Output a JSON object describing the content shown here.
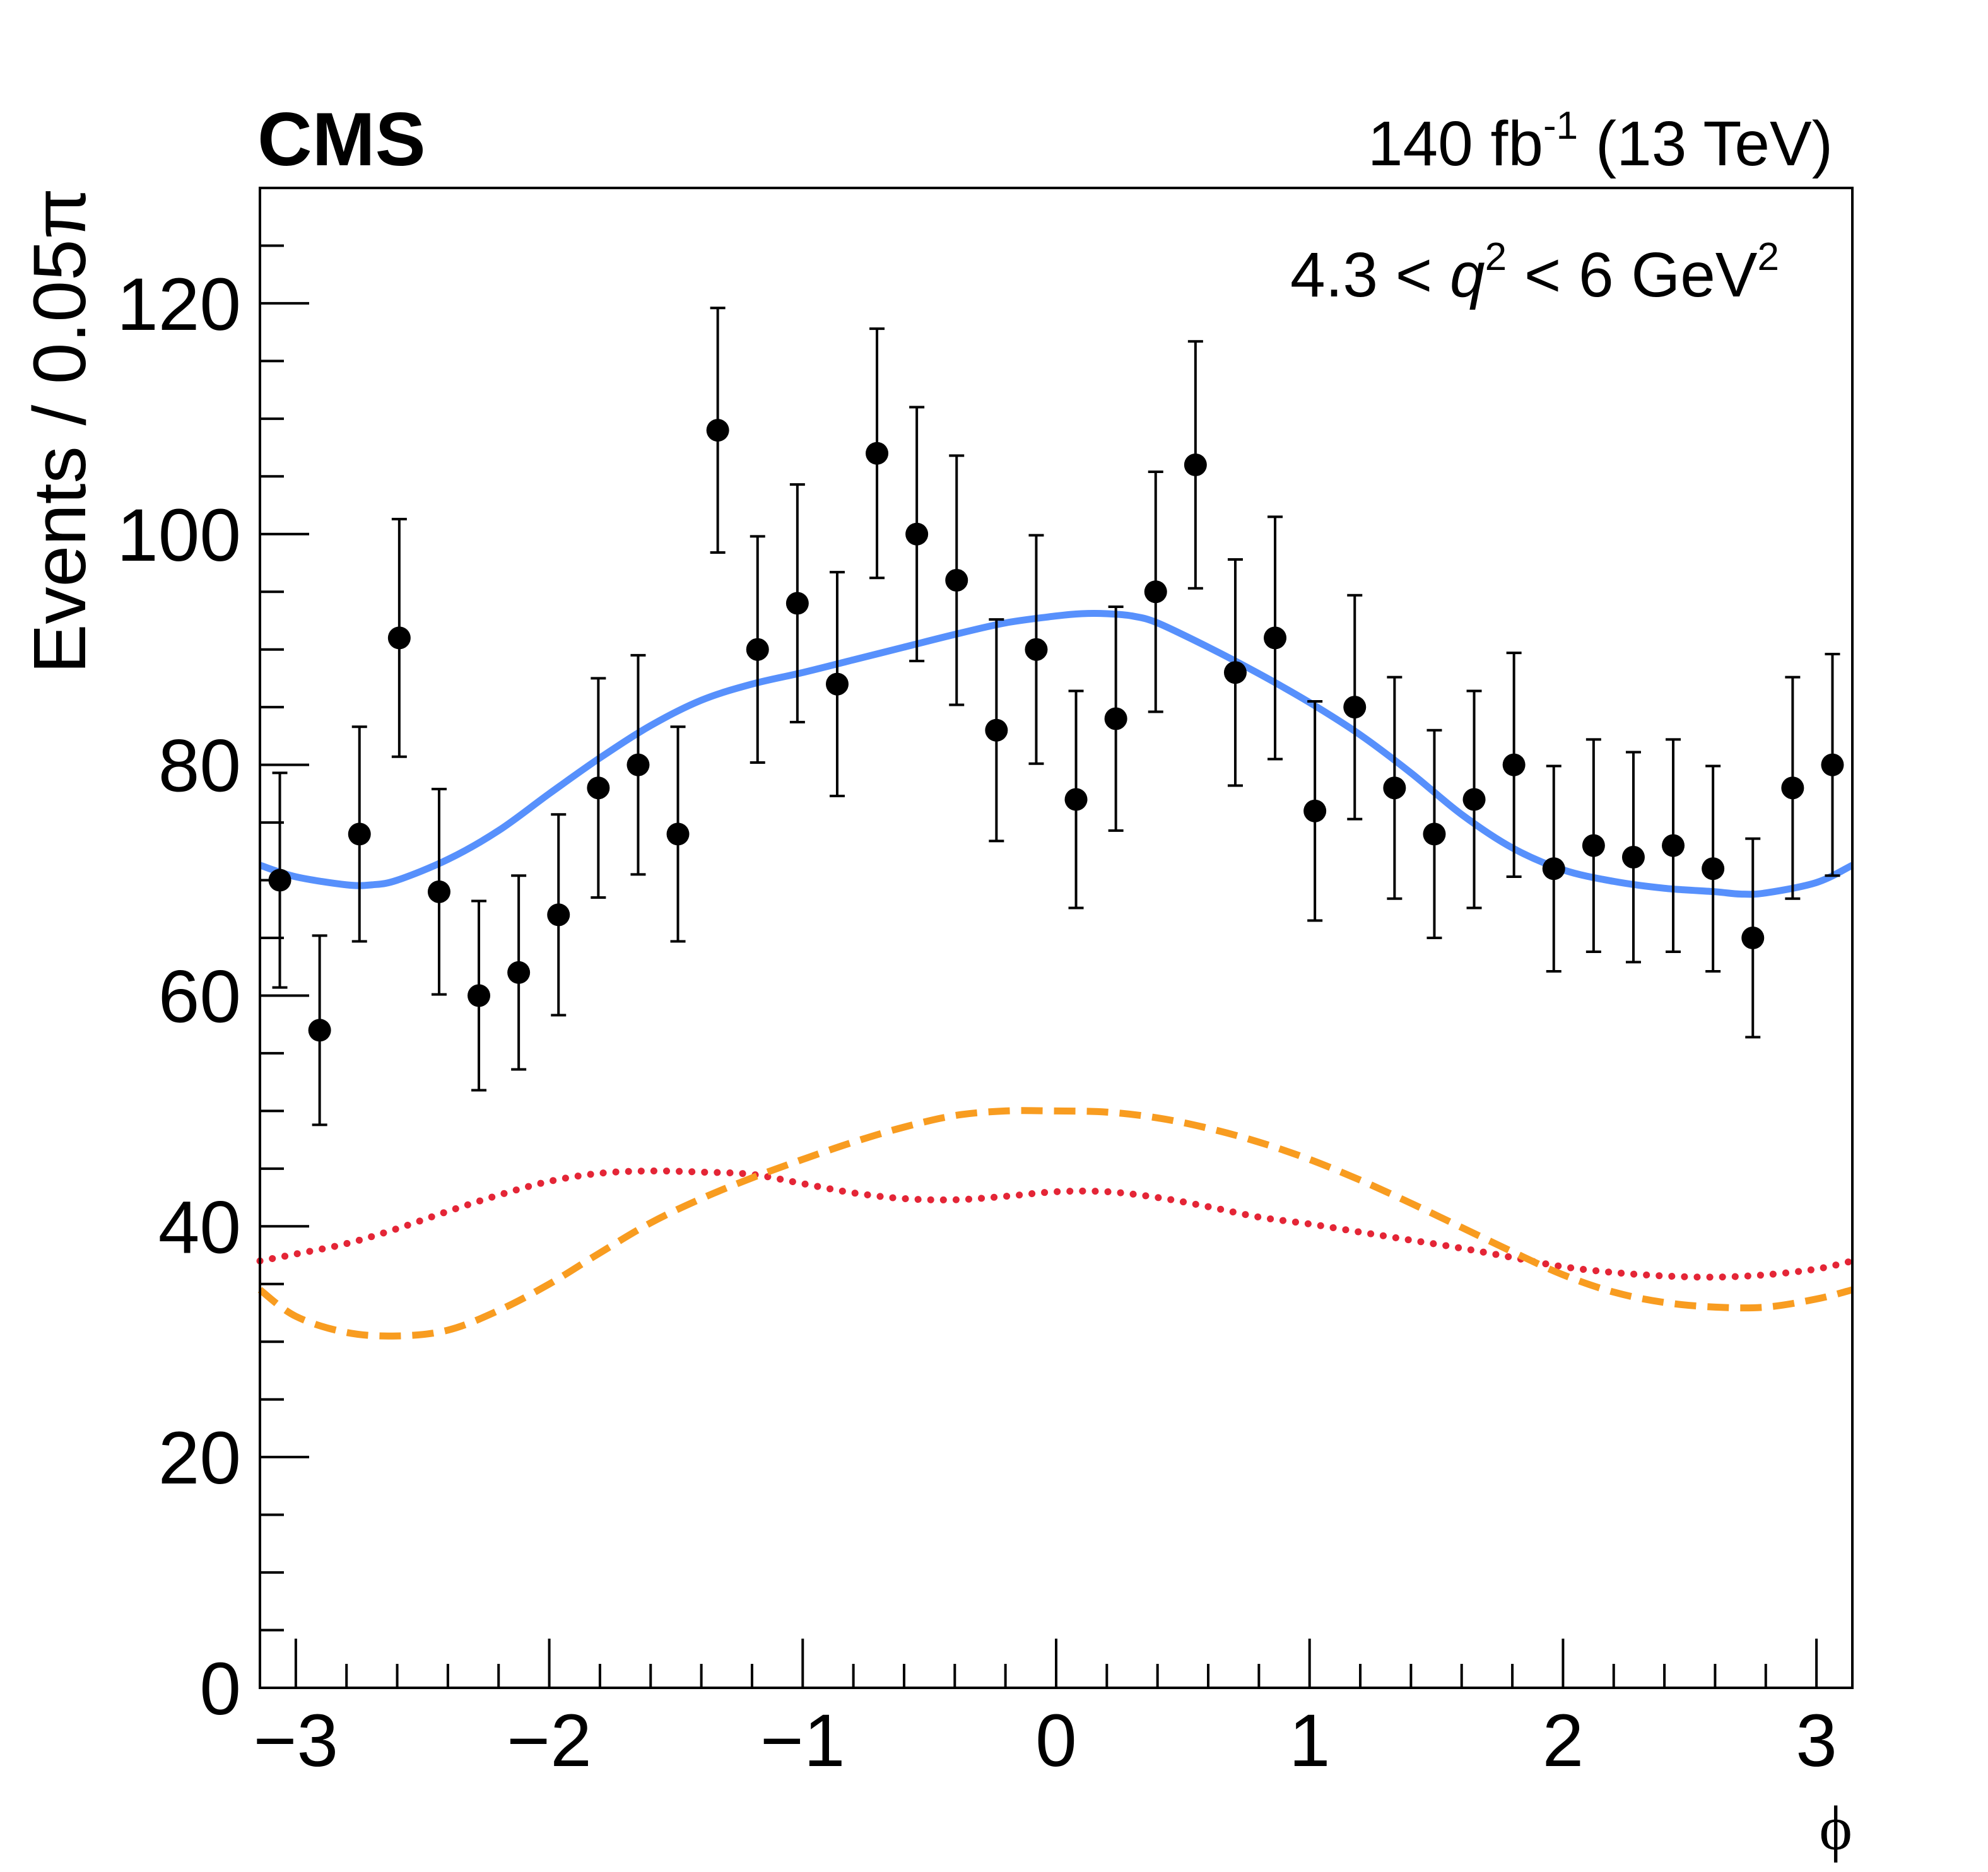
{
  "header": {
    "experiment": "CMS",
    "lumi_value": "140 fb",
    "lumi_exp": "-1",
    "energy": " (13 TeV)"
  },
  "annotation": {
    "pre": "4.3 < ",
    "var": "q",
    "var_exp": "2",
    "post": " < 6 GeV",
    "post_exp": "2"
  },
  "colors": {
    "total_fit": "#5790fc",
    "dashed_component": "#f89c20",
    "dotted_component": "#e42536",
    "data": "#000000"
  },
  "chart_data": {
    "type": "scatter",
    "xlabel": "ϕ",
    "ylabel": "Events / 0.05π",
    "xlim": [
      -3.14159,
      3.14159
    ],
    "ylim": [
      0,
      130
    ],
    "x_ticks": [
      -3,
      -2,
      -1,
      0,
      1,
      2,
      3
    ],
    "x_tick_labels": [
      "−3",
      "−2",
      "−1",
      "0",
      "1",
      "2",
      "3"
    ],
    "y_ticks": [
      0,
      20,
      40,
      60,
      80,
      100,
      120
    ],
    "y_tick_labels": [
      "0",
      "20",
      "40",
      "60",
      "80",
      "100",
      "120"
    ],
    "series": [
      {
        "name": "data",
        "kind": "points",
        "x": [
          -3.0631,
          -2.906,
          -2.7489,
          -2.5918,
          -2.4347,
          -2.2777,
          -2.1206,
          -1.9635,
          -1.8064,
          -1.6493,
          -1.4923,
          -1.3352,
          -1.1781,
          -1.021,
          -0.8639,
          -0.7069,
          -0.5498,
          -0.3927,
          -0.2356,
          -0.0785,
          0.0785,
          0.2356,
          0.3927,
          0.5498,
          0.7069,
          0.8639,
          1.021,
          1.1781,
          1.3352,
          1.4923,
          1.6493,
          1.8064,
          1.9635,
          2.1206,
          2.2777,
          2.4347,
          2.5918,
          2.7489,
          2.906,
          3.0631
        ],
        "y": [
          70,
          57,
          74,
          91,
          69,
          60,
          62,
          67,
          78,
          80,
          74,
          109,
          90,
          94,
          87,
          107,
          100,
          96,
          83,
          90,
          77,
          84,
          95,
          106,
          88,
          91,
          76,
          85,
          78,
          74,
          77,
          80,
          71,
          73,
          72,
          73,
          71,
          65,
          78,
          80
        ],
        "yerr": [
          9.3,
          8.2,
          9.3,
          10.3,
          8.9,
          8.2,
          8.4,
          8.7,
          9.5,
          9.5,
          9.3,
          10.6,
          9.8,
          10.3,
          9.7,
          10.8,
          11.0,
          10.8,
          9.6,
          9.9,
          9.4,
          9.7,
          10.4,
          10.7,
          9.8,
          10.5,
          9.5,
          9.7,
          9.6,
          9.0,
          9.4,
          9.7,
          8.9,
          9.2,
          9.1,
          9.2,
          8.9,
          8.6,
          9.6,
          9.6
        ]
      },
      {
        "name": "total fit",
        "kind": "line",
        "style": "solid",
        "x": [
          -3.1416,
          -3.0,
          -2.8,
          -2.7,
          -2.6,
          -2.4,
          -2.2,
          -2.0,
          -1.8,
          -1.6,
          -1.4,
          -1.2,
          -1.0,
          -0.8,
          -0.6,
          -0.4,
          -0.2,
          0.0,
          0.1,
          0.2,
          0.3,
          0.4,
          0.6,
          0.8,
          1.0,
          1.2,
          1.4,
          1.6,
          1.8,
          2.0,
          2.2,
          2.4,
          2.6,
          2.7,
          2.8,
          3.0,
          3.1416
        ],
        "y": [
          71.3,
          70.3,
          69.6,
          69.6,
          70.0,
          71.8,
          74.3,
          77.5,
          80.6,
          83.4,
          85.6,
          87.0,
          88.0,
          89.1,
          90.2,
          91.3,
          92.3,
          92.9,
          93.1,
          93.1,
          92.9,
          92.3,
          90.2,
          87.9,
          85.4,
          82.6,
          79.3,
          75.7,
          72.8,
          70.9,
          69.9,
          69.3,
          69.0,
          68.8,
          68.9,
          69.8,
          71.3
        ]
      },
      {
        "name": "dashed component",
        "kind": "line",
        "style": "dashed",
        "x": [
          -3.1416,
          -3.0,
          -2.8,
          -2.6,
          -2.4,
          -2.2,
          -2.0,
          -1.8,
          -1.6,
          -1.4,
          -1.2,
          -1.0,
          -0.8,
          -0.6,
          -0.4,
          -0.2,
          0.0,
          0.2,
          0.4,
          0.6,
          0.8,
          1.0,
          1.2,
          1.4,
          1.6,
          1.8,
          2.0,
          2.2,
          2.4,
          2.6,
          2.8,
          3.0,
          3.1416
        ],
        "y": [
          34.5,
          32.2,
          30.8,
          30.5,
          31.0,
          32.7,
          35.0,
          37.7,
          40.3,
          42.4,
          44.2,
          45.8,
          47.3,
          48.6,
          49.6,
          50.0,
          50.0,
          49.9,
          49.4,
          48.5,
          47.3,
          45.8,
          44.0,
          42.0,
          39.9,
          37.8,
          35.8,
          34.3,
          33.4,
          33.0,
          33.0,
          33.7,
          34.5
        ]
      },
      {
        "name": "dotted component",
        "kind": "line",
        "style": "dotted",
        "x": [
          -3.1416,
          -3.0,
          -2.8,
          -2.6,
          -2.4,
          -2.2,
          -2.0,
          -1.8,
          -1.6,
          -1.4,
          -1.2,
          -1.0,
          -0.8,
          -0.6,
          -0.4,
          -0.2,
          0.0,
          0.2,
          0.4,
          0.6,
          0.8,
          1.0,
          1.2,
          1.4,
          1.6,
          1.8,
          2.0,
          2.2,
          2.4,
          2.6,
          2.8,
          3.0,
          3.1416
        ],
        "y": [
          37.0,
          37.6,
          38.5,
          39.8,
          41.3,
          42.7,
          43.9,
          44.6,
          44.8,
          44.7,
          44.5,
          43.7,
          42.9,
          42.4,
          42.3,
          42.6,
          43.0,
          43.0,
          42.5,
          41.7,
          40.8,
          40.2,
          39.5,
          38.8,
          38.1,
          37.3,
          36.5,
          36.0,
          35.7,
          35.6,
          35.8,
          36.3,
          37.0
        ]
      }
    ]
  }
}
